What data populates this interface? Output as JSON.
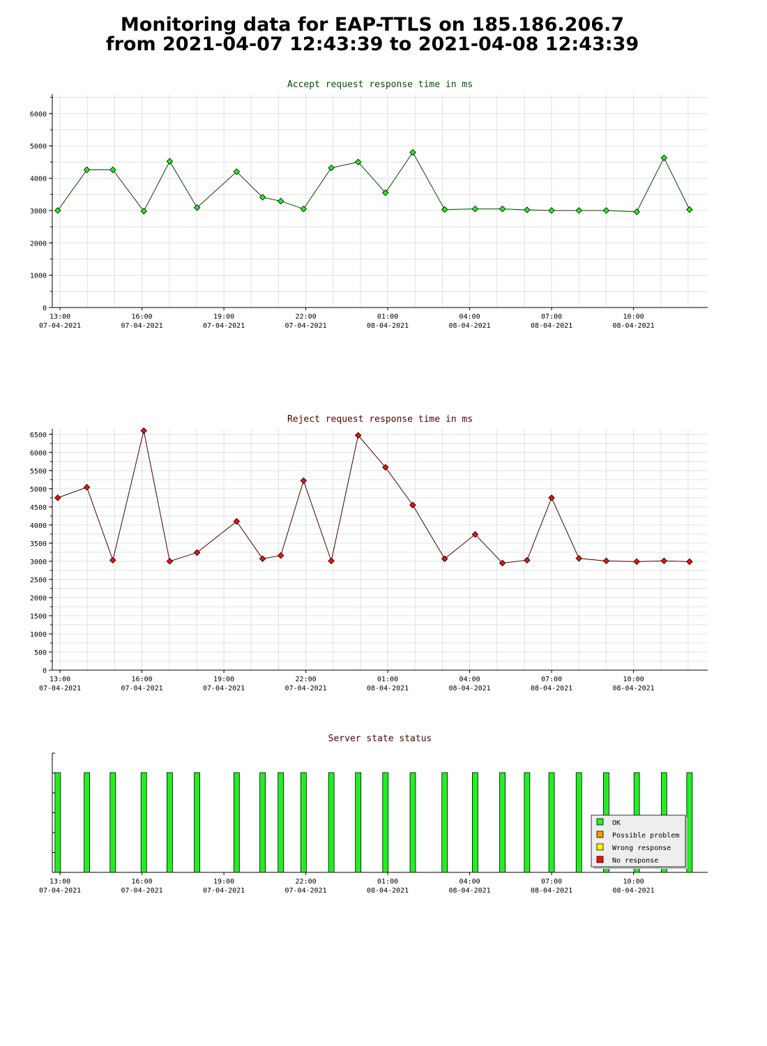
{
  "page": {
    "title_line1": "Monitoring data for EAP-TTLS on 185.186.206.7",
    "title_line2": "from 2021-04-07 12:43:39 to 2021-04-08 12:43:39"
  },
  "chart_data": [
    {
      "type": "line",
      "title": "Accept request response time in ms",
      "title_color": "#005000",
      "line_color": "#004400",
      "marker_color": "#22ee22",
      "grid": true,
      "time_window": [
        "07-04-2021 12:43",
        "08-04-2021 12:43"
      ],
      "ylim": [
        0,
        6600
      ],
      "yticks": [
        0,
        1000,
        2000,
        3000,
        4000,
        5000,
        6000
      ],
      "xticks": [
        {
          "time": "07-04-2021 13:00",
          "label1": "13:00",
          "label2": "07-04-2021"
        },
        {
          "time": "07-04-2021 16:00",
          "label1": "16:00",
          "label2": "07-04-2021"
        },
        {
          "time": "07-04-2021 19:00",
          "label1": "19:00",
          "label2": "07-04-2021"
        },
        {
          "time": "07-04-2021 22:00",
          "label1": "22:00",
          "label2": "07-04-2021"
        },
        {
          "time": "08-04-2021 01:00",
          "label1": "01:00",
          "label2": "08-04-2021"
        },
        {
          "time": "08-04-2021 04:00",
          "label1": "04:00",
          "label2": "08-04-2021"
        },
        {
          "time": "08-04-2021 07:00",
          "label1": "07:00",
          "label2": "08-04-2021"
        },
        {
          "time": "08-04-2021 10:00",
          "label1": "10:00",
          "label2": "08-04-2021"
        }
      ],
      "points": [
        {
          "x": "07-04-2021 12:55",
          "y": 3000
        },
        {
          "x": "07-04-2021 13:59",
          "y": 4260
        },
        {
          "x": "07-04-2021 14:56",
          "y": 4260
        },
        {
          "x": "07-04-2021 16:04",
          "y": 2980
        },
        {
          "x": "07-04-2021 17:01",
          "y": 4520
        },
        {
          "x": "07-04-2021 18:01",
          "y": 3090
        },
        {
          "x": "07-04-2021 19:28",
          "y": 4200
        },
        {
          "x": "07-04-2021 20:25",
          "y": 3410
        },
        {
          "x": "07-04-2021 21:05",
          "y": 3290
        },
        {
          "x": "07-04-2021 21:55",
          "y": 3050
        },
        {
          "x": "07-04-2021 22:56",
          "y": 4320
        },
        {
          "x": "07-04-2021 23:55",
          "y": 4500
        },
        {
          "x": "08-04-2021 00:55",
          "y": 3550
        },
        {
          "x": "08-04-2021 01:55",
          "y": 4800
        },
        {
          "x": "08-04-2021 03:05",
          "y": 3030
        },
        {
          "x": "08-04-2021 04:12",
          "y": 3050
        },
        {
          "x": "08-04-2021 05:12",
          "y": 3050
        },
        {
          "x": "08-04-2021 06:06",
          "y": 3020
        },
        {
          "x": "08-04-2021 07:00",
          "y": 3000
        },
        {
          "x": "08-04-2021 08:00",
          "y": 3000
        },
        {
          "x": "08-04-2021 09:00",
          "y": 3000
        },
        {
          "x": "08-04-2021 10:07",
          "y": 2960
        },
        {
          "x": "08-04-2021 11:07",
          "y": 4630
        },
        {
          "x": "08-04-2021 12:03",
          "y": 3030
        }
      ]
    },
    {
      "type": "line",
      "title": "Reject request response time in ms",
      "title_color": "#500000",
      "line_color": "#440000",
      "marker_color": "#ee1111",
      "grid": true,
      "time_window": [
        "07-04-2021 12:43",
        "08-04-2021 12:43"
      ],
      "ylim": [
        0,
        6650
      ],
      "yticks": [
        0,
        500,
        1000,
        1500,
        2000,
        2500,
        3000,
        3500,
        4000,
        4500,
        5000,
        5500,
        6000,
        6500
      ],
      "xticks": [
        {
          "time": "07-04-2021 13:00",
          "label1": "13:00",
          "label2": "07-04-2021"
        },
        {
          "time": "07-04-2021 16:00",
          "label1": "16:00",
          "label2": "07-04-2021"
        },
        {
          "time": "07-04-2021 19:00",
          "label1": "19:00",
          "label2": "07-04-2021"
        },
        {
          "time": "07-04-2021 22:00",
          "label1": "22:00",
          "label2": "07-04-2021"
        },
        {
          "time": "08-04-2021 01:00",
          "label1": "01:00",
          "label2": "08-04-2021"
        },
        {
          "time": "08-04-2021 04:00",
          "label1": "04:00",
          "label2": "08-04-2021"
        },
        {
          "time": "08-04-2021 07:00",
          "label1": "07:00",
          "label2": "08-04-2021"
        },
        {
          "time": "08-04-2021 10:00",
          "label1": "10:00",
          "label2": "08-04-2021"
        }
      ],
      "points": [
        {
          "x": "07-04-2021 12:55",
          "y": 4750
        },
        {
          "x": "07-04-2021 13:59",
          "y": 5040
        },
        {
          "x": "07-04-2021 14:56",
          "y": 3030
        },
        {
          "x": "07-04-2021 16:04",
          "y": 6600
        },
        {
          "x": "07-04-2021 17:01",
          "y": 3000
        },
        {
          "x": "07-04-2021 18:01",
          "y": 3240
        },
        {
          "x": "07-04-2021 19:28",
          "y": 4100
        },
        {
          "x": "07-04-2021 20:25",
          "y": 3070
        },
        {
          "x": "07-04-2021 21:05",
          "y": 3160
        },
        {
          "x": "07-04-2021 21:55",
          "y": 5220
        },
        {
          "x": "07-04-2021 22:56",
          "y": 3010
        },
        {
          "x": "07-04-2021 23:55",
          "y": 6470
        },
        {
          "x": "08-04-2021 00:55",
          "y": 5590
        },
        {
          "x": "08-04-2021 01:55",
          "y": 4550
        },
        {
          "x": "08-04-2021 03:05",
          "y": 3070
        },
        {
          "x": "08-04-2021 04:12",
          "y": 3740
        },
        {
          "x": "08-04-2021 05:12",
          "y": 2950
        },
        {
          "x": "08-04-2021 06:06",
          "y": 3030
        },
        {
          "x": "08-04-2021 07:00",
          "y": 4750
        },
        {
          "x": "08-04-2021 08:00",
          "y": 3080
        },
        {
          "x": "08-04-2021 09:00",
          "y": 3010
        },
        {
          "x": "08-04-2021 10:07",
          "y": 2990
        },
        {
          "x": "08-04-2021 11:07",
          "y": 3010
        },
        {
          "x": "08-04-2021 12:03",
          "y": 2990
        }
      ]
    },
    {
      "type": "bar",
      "title": "Server state status",
      "title_color": "#500000",
      "grid": false,
      "time_window": [
        "07-04-2021 12:43",
        "08-04-2021 12:43"
      ],
      "xticks": [
        {
          "time": "07-04-2021 13:00",
          "label1": "13:00",
          "label2": "07-04-2021"
        },
        {
          "time": "07-04-2021 16:00",
          "label1": "16:00",
          "label2": "07-04-2021"
        },
        {
          "time": "07-04-2021 19:00",
          "label1": "19:00",
          "label2": "07-04-2021"
        },
        {
          "time": "07-04-2021 22:00",
          "label1": "22:00",
          "label2": "07-04-2021"
        },
        {
          "time": "08-04-2021 01:00",
          "label1": "01:00",
          "label2": "08-04-2021"
        },
        {
          "time": "08-04-2021 04:00",
          "label1": "04:00",
          "label2": "08-04-2021"
        },
        {
          "time": "08-04-2021 07:00",
          "label1": "07:00",
          "label2": "08-04-2021"
        },
        {
          "time": "08-04-2021 10:00",
          "label1": "10:00",
          "label2": "08-04-2021"
        }
      ],
      "legend_position": "lower-right",
      "legend": [
        {
          "label": "OK",
          "color": "#22ee22"
        },
        {
          "label": "Possible problem",
          "color": "#ff9900"
        },
        {
          "label": "Wrong response",
          "color": "#ffff00"
        },
        {
          "label": "No response",
          "color": "#ee1111"
        }
      ],
      "bars": [
        {
          "x": "07-04-2021 12:55",
          "state": "OK"
        },
        {
          "x": "07-04-2021 13:59",
          "state": "OK"
        },
        {
          "x": "07-04-2021 14:56",
          "state": "OK"
        },
        {
          "x": "07-04-2021 16:04",
          "state": "OK"
        },
        {
          "x": "07-04-2021 17:01",
          "state": "OK"
        },
        {
          "x": "07-04-2021 18:01",
          "state": "OK"
        },
        {
          "x": "07-04-2021 19:28",
          "state": "OK"
        },
        {
          "x": "07-04-2021 20:25",
          "state": "OK"
        },
        {
          "x": "07-04-2021 21:05",
          "state": "OK"
        },
        {
          "x": "07-04-2021 21:55",
          "state": "OK"
        },
        {
          "x": "07-04-2021 22:56",
          "state": "OK"
        },
        {
          "x": "07-04-2021 23:55",
          "state": "OK"
        },
        {
          "x": "08-04-2021 00:55",
          "state": "OK"
        },
        {
          "x": "08-04-2021 01:55",
          "state": "OK"
        },
        {
          "x": "08-04-2021 03:05",
          "state": "OK"
        },
        {
          "x": "08-04-2021 04:12",
          "state": "OK"
        },
        {
          "x": "08-04-2021 05:12",
          "state": "OK"
        },
        {
          "x": "08-04-2021 06:06",
          "state": "OK"
        },
        {
          "x": "08-04-2021 07:00",
          "state": "OK"
        },
        {
          "x": "08-04-2021 08:00",
          "state": "OK"
        },
        {
          "x": "08-04-2021 09:00",
          "state": "OK"
        },
        {
          "x": "08-04-2021 10:07",
          "state": "OK"
        },
        {
          "x": "08-04-2021 11:07",
          "state": "OK"
        },
        {
          "x": "08-04-2021 12:03",
          "state": "OK"
        }
      ]
    }
  ]
}
